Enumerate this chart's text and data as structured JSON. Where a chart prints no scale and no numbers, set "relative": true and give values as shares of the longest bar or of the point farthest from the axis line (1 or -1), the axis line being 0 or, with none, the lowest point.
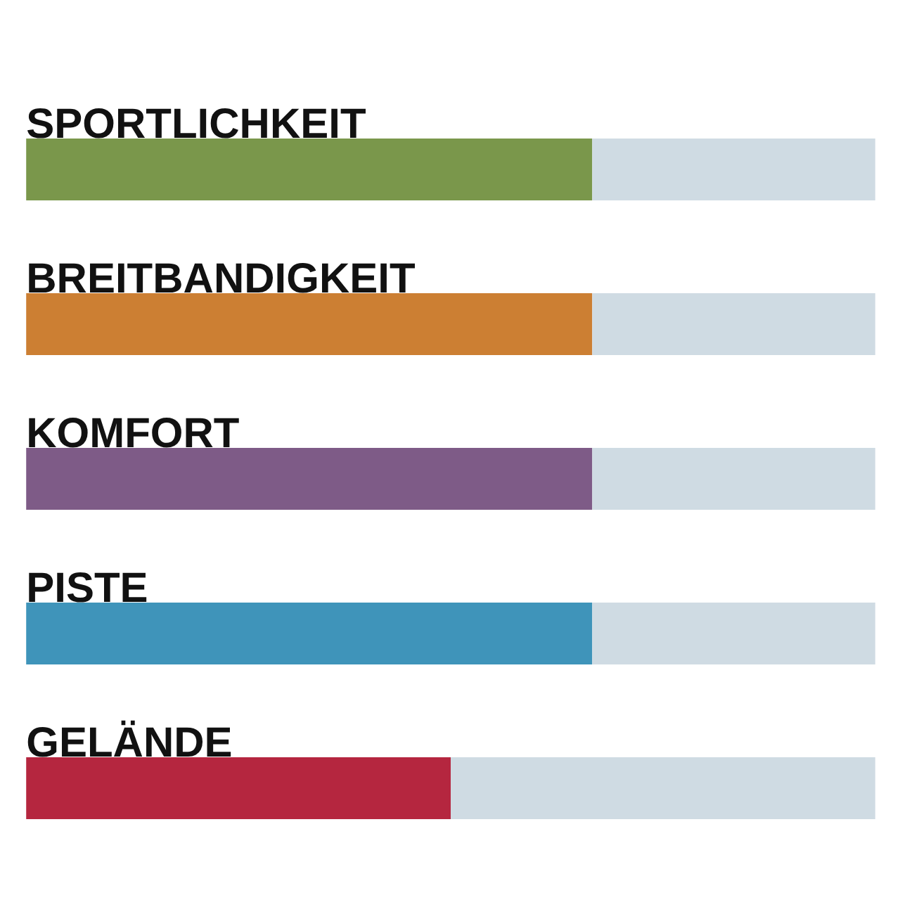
{
  "chart_data": {
    "type": "bar",
    "orientation": "horizontal",
    "stacked": true,
    "relative": true,
    "categories": [
      "SPORTLICHKEIT",
      "BREITBANDIGKEIT",
      "KOMFORT",
      "PISTE",
      "GELÄNDE"
    ],
    "series": [
      {
        "colors": [
          "#7a974b",
          "#cc7f33",
          "#7e5b87",
          "#3f94ba",
          "#b5263f"
        ],
        "values": [
          0.6667,
          0.6667,
          0.6667,
          0.6667,
          0.5
        ]
      },
      {
        "color": "#cfdbe3",
        "values": [
          0.3333,
          0.3333,
          0.3333,
          0.3333,
          0.5
        ]
      }
    ]
  }
}
